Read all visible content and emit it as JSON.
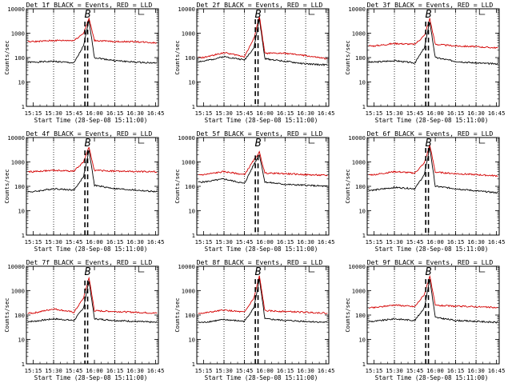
{
  "chart_data": {
    "type": "line",
    "panels": [
      {
        "title": "Det 1f BLACK = Events, RED = LLD",
        "marker": "B",
        "peak": 4000,
        "series": [
          {
            "name": "Events",
            "color": "#000000",
            "x": [
              "15:15",
              "15:30",
              "15:45",
              "15:52",
              "15:56",
              "16:00",
              "16:15",
              "16:30",
              "16:45"
            ],
            "y": [
              65,
              70,
              60,
              300,
              3500,
              100,
              75,
              65,
              60
            ]
          },
          {
            "name": "LLD",
            "color": "#d40000",
            "x": [
              "15:15",
              "15:30",
              "15:45",
              "15:52",
              "15:56",
              "16:00",
              "16:15",
              "16:30",
              "16:45"
            ],
            "y": [
              450,
              500,
              500,
              1000,
              4000,
              500,
              450,
              450,
              400
            ]
          }
        ]
      },
      {
        "title": "Det 2f BLACK = Events, RED = LLD",
        "marker": "B",
        "peak": 5000,
        "series": [
          {
            "name": "Events",
            "color": "#000000",
            "x": [
              "15:15",
              "15:30",
              "15:45",
              "15:52",
              "15:56",
              "16:00",
              "16:15",
              "16:30",
              "16:45"
            ],
            "y": [
              70,
              110,
              80,
              250,
              4000,
              90,
              70,
              55,
              50
            ]
          },
          {
            "name": "LLD",
            "color": "#d40000",
            "x": [
              "15:15",
              "15:30",
              "15:45",
              "15:52",
              "15:56",
              "16:00",
              "16:15",
              "16:30",
              "16:45"
            ],
            "y": [
              100,
              160,
              110,
              600,
              5000,
              150,
              150,
              120,
              90
            ]
          }
        ]
      },
      {
        "title": "Det 3f BLACK = Events, RED = LLD",
        "marker": "B",
        "peak": 4000,
        "series": [
          {
            "name": "Events",
            "color": "#000000",
            "x": [
              "15:15",
              "15:30",
              "15:45",
              "15:52",
              "15:56",
              "16:00",
              "16:15",
              "16:30",
              "16:45"
            ],
            "y": [
              65,
              75,
              60,
              250,
              3000,
              100,
              70,
              60,
              55
            ]
          },
          {
            "name": "LLD",
            "color": "#d40000",
            "x": [
              "15:15",
              "15:30",
              "15:45",
              "15:52",
              "15:56",
              "16:00",
              "16:15",
              "16:30",
              "16:45"
            ],
            "y": [
              300,
              380,
              350,
              800,
              4000,
              350,
              300,
              280,
              250
            ]
          }
        ]
      },
      {
        "title": "Det 4f BLACK = Events, RED = LLD",
        "marker": "B",
        "peak": 4000,
        "series": [
          {
            "name": "Events",
            "color": "#000000",
            "x": [
              "15:15",
              "15:30",
              "15:45",
              "15:52",
              "15:56",
              "16:00",
              "16:15",
              "16:30",
              "16:45"
            ],
            "y": [
              60,
              80,
              70,
              250,
              3000,
              110,
              80,
              70,
              60
            ]
          },
          {
            "name": "LLD",
            "color": "#d40000",
            "x": [
              "15:15",
              "15:30",
              "15:45",
              "15:52",
              "15:56",
              "16:00",
              "16:15",
              "16:30",
              "16:45"
            ],
            "y": [
              400,
              450,
              420,
              1000,
              4000,
              450,
              420,
              400,
              400
            ]
          }
        ]
      },
      {
        "title": "Det 5f BLACK = Events, RED = LLD",
        "marker": "B",
        "peak": 2500,
        "series": [
          {
            "name": "Events",
            "color": "#000000",
            "x": [
              "15:15",
              "15:30",
              "15:45",
              "15:52",
              "15:56",
              "16:00",
              "16:15",
              "16:30",
              "16:45"
            ],
            "y": [
              150,
              200,
              130,
              800,
              2000,
              150,
              120,
              110,
              100
            ]
          },
          {
            "name": "LLD",
            "color": "#d40000",
            "x": [
              "15:15",
              "15:30",
              "15:45",
              "15:52",
              "15:56",
              "16:00",
              "16:15",
              "16:30",
              "16:45"
            ],
            "y": [
              300,
              400,
              300,
              1200,
              2500,
              350,
              330,
              300,
              280
            ]
          }
        ]
      },
      {
        "title": "Det 6f BLACK = Events, RED = LLD",
        "marker": "B",
        "peak": 5000,
        "series": [
          {
            "name": "Events",
            "color": "#000000",
            "x": [
              "15:15",
              "15:30",
              "15:45",
              "15:52",
              "15:56",
              "16:00",
              "16:15",
              "16:30",
              "16:45"
            ],
            "y": [
              70,
              90,
              80,
              300,
              4000,
              100,
              80,
              65,
              55
            ]
          },
          {
            "name": "LLD",
            "color": "#d40000",
            "x": [
              "15:15",
              "15:30",
              "15:45",
              "15:52",
              "15:56",
              "16:00",
              "16:15",
              "16:30",
              "16:45"
            ],
            "y": [
              300,
              400,
              350,
              900,
              5000,
              380,
              330,
              300,
              270
            ]
          }
        ]
      },
      {
        "title": "Det 7f BLACK = Events, RED = LLD",
        "marker": "B",
        "peak": 3500,
        "series": [
          {
            "name": "Events",
            "color": "#000000",
            "x": [
              "15:15",
              "15:30",
              "15:45",
              "15:52",
              "15:56",
              "16:00",
              "16:15",
              "16:30",
              "16:45"
            ],
            "y": [
              55,
              70,
              60,
              200,
              2500,
              70,
              60,
              55,
              50
            ]
          },
          {
            "name": "LLD",
            "color": "#d40000",
            "x": [
              "15:15",
              "15:30",
              "15:45",
              "15:52",
              "15:56",
              "16:00",
              "16:15",
              "16:30",
              "16:45"
            ],
            "y": [
              120,
              180,
              130,
              500,
              3500,
              150,
              140,
              130,
              120
            ]
          }
        ]
      },
      {
        "title": "Det 8f BLACK = Events, RED = LLD",
        "marker": "B",
        "peak": 4000,
        "series": [
          {
            "name": "Events",
            "color": "#000000",
            "x": [
              "15:15",
              "15:30",
              "15:45",
              "15:52",
              "15:56",
              "16:00",
              "16:15",
              "16:30",
              "16:45"
            ],
            "y": [
              50,
              65,
              55,
              200,
              3000,
              70,
              60,
              55,
              50
            ]
          },
          {
            "name": "LLD",
            "color": "#d40000",
            "x": [
              "15:15",
              "15:30",
              "15:45",
              "15:52",
              "15:56",
              "16:00",
              "16:15",
              "16:30",
              "16:45"
            ],
            "y": [
              120,
              160,
              130,
              500,
              4000,
              150,
              140,
              130,
              120
            ]
          }
        ]
      },
      {
        "title": "Det 9f BLACK = Events, RED = LLD",
        "marker": "B",
        "peak": 4000,
        "series": [
          {
            "name": "Events",
            "color": "#000000",
            "x": [
              "15:15",
              "15:30",
              "15:45",
              "15:52",
              "15:56",
              "16:00",
              "16:15",
              "16:30",
              "16:45"
            ],
            "y": [
              55,
              70,
              60,
              200,
              3000,
              80,
              60,
              55,
              50
            ]
          },
          {
            "name": "LLD",
            "color": "#d40000",
            "x": [
              "15:15",
              "15:30",
              "15:45",
              "15:52",
              "15:56",
              "16:00",
              "16:15",
              "16:30",
              "16:45"
            ],
            "y": [
              200,
              260,
              220,
              700,
              4000,
              250,
              230,
              220,
              200
            ]
          }
        ]
      }
    ],
    "x_ticks": [
      "15:15",
      "15:30",
      "15:45",
      "16:00",
      "16:15",
      "16:30",
      "16:45"
    ],
    "x_range": [
      "15:10",
      "16:47"
    ],
    "y_scale": "log",
    "y_range": [
      1,
      10000
    ],
    "y_ticks": [
      "1",
      "10",
      "100",
      "1000",
      "10000"
    ],
    "ylabel": "Counts/sec",
    "xlabel": "Start Time (28-Sep-08 15:11:00)",
    "dotted_lines_at": [
      "15:30",
      "15:45",
      "16:15",
      "16:30"
    ],
    "dashed_lines_at": [
      "15:53",
      "15:55"
    ],
    "marker_at": "15:55",
    "grid": false,
    "legend": "title"
  }
}
